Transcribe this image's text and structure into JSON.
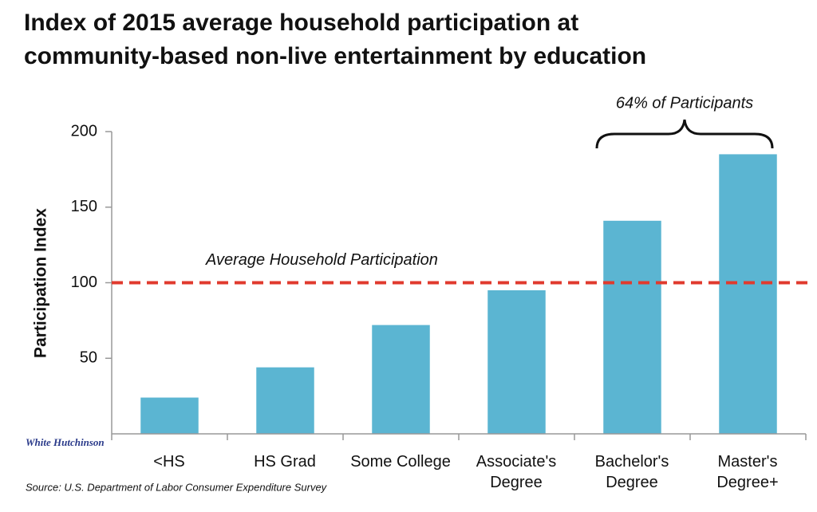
{
  "chart_data": {
    "type": "bar",
    "title": "Index of 2015 average household participation at community-based non-live entertainment by education",
    "y_label": "Participation Index",
    "categories": [
      "<HS",
      "HS Grad",
      "Some College",
      "Associate's Degree",
      "Bachelor's Degree",
      "Master's Degree+"
    ],
    "values": [
      24,
      44,
      72,
      95,
      141,
      185
    ],
    "color": "#5bb5d2",
    "ylim": [
      0,
      200
    ],
    "yticks": [
      50,
      100,
      150,
      200
    ],
    "grid": false,
    "reference_line": {
      "value": 100,
      "label": "Average Household Participation",
      "color": "#e03a2e"
    },
    "bracket_annotation": "64% of Participants",
    "source": "Source: U.S. Department of Labor Consumer Expenditure Survey",
    "logo": "White Hutchinson"
  }
}
